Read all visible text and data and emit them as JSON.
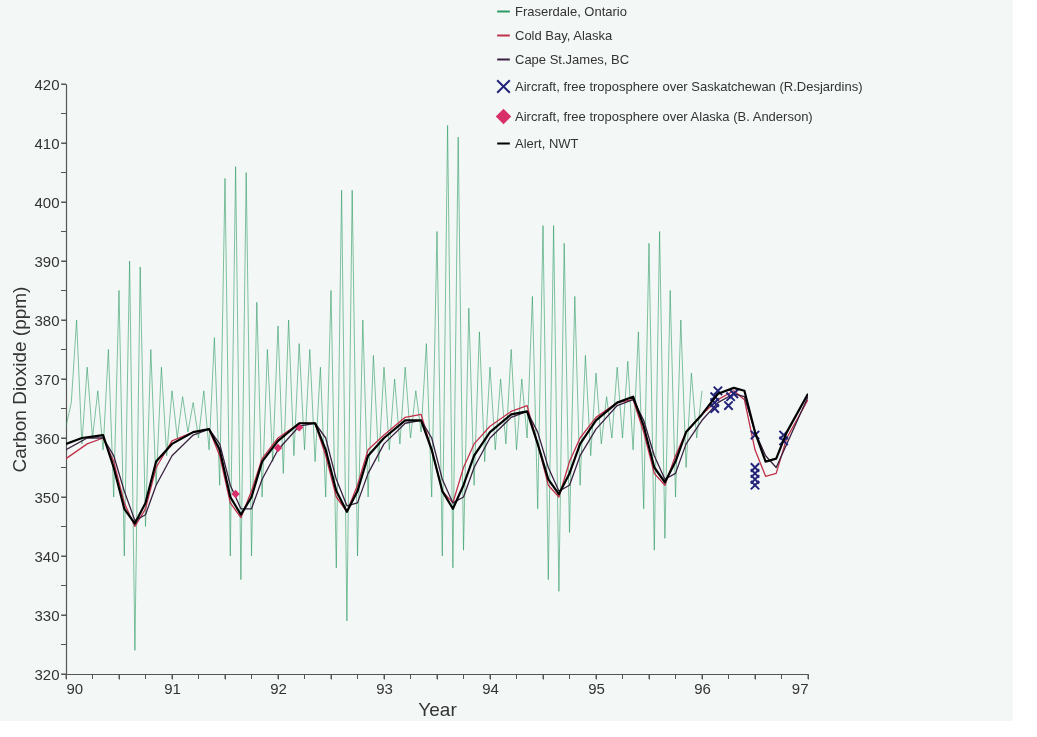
{
  "chart_data": {
    "type": "line",
    "xlabel": "Year",
    "ylabel": "Carbon Dioxide (ppm)",
    "xlim": [
      90,
      97
    ],
    "ylim": [
      320,
      420
    ],
    "xticks": [
      90,
      {
        "value": 90.25,
        "label": null
      },
      {
        "value": 90.5,
        "label": null
      },
      {
        "value": 90.75,
        "label": null
      },
      91,
      {
        "value": 91.25,
        "label": null
      },
      {
        "value": 91.5,
        "label": null
      },
      {
        "value": 91.75,
        "label": null
      },
      92,
      {
        "value": 92.25,
        "label": null
      },
      {
        "value": 92.5,
        "label": null
      },
      {
        "value": 92.75,
        "label": null
      },
      93,
      {
        "value": 93.25,
        "label": null
      },
      {
        "value": 93.5,
        "label": null
      },
      {
        "value": 93.75,
        "label": null
      },
      94,
      {
        "value": 94.25,
        "label": null
      },
      {
        "value": 94.5,
        "label": null
      },
      {
        "value": 94.75,
        "label": null
      },
      95,
      {
        "value": 95.25,
        "label": null
      },
      {
        "value": 95.5,
        "label": null
      },
      {
        "value": 95.75,
        "label": null
      },
      96,
      {
        "value": 96.25,
        "label": null
      },
      {
        "value": 96.5,
        "label": null
      },
      {
        "value": 96.75,
        "label": null
      },
      97
    ],
    "yticks": [
      320,
      {
        "value": 325,
        "label": null
      },
      330,
      {
        "value": 335,
        "label": null
      },
      340,
      {
        "value": 345,
        "label": null
      },
      350,
      {
        "value": 355,
        "label": null
      },
      360,
      {
        "value": 365,
        "label": null
      },
      370,
      {
        "value": 375,
        "label": null
      },
      380,
      {
        "value": 385,
        "label": null
      },
      390,
      {
        "value": 395,
        "label": null
      },
      400,
      {
        "value": 405,
        "label": null
      },
      410,
      {
        "value": 415,
        "label": null
      },
      420
    ],
    "grid": false,
    "legend": "top right",
    "series": [
      {
        "name": "Fraserdale, Ontario",
        "type": "line",
        "color": "#2e9a63",
        "x": [
          90.0,
          90.05,
          90.1,
          90.15,
          90.2,
          90.25,
          90.3,
          90.35,
          90.4,
          90.45,
          90.5,
          90.55,
          90.6,
          90.65,
          90.7,
          90.75,
          90.8,
          90.85,
          90.9,
          90.95,
          91.0,
          91.05,
          91.1,
          91.15,
          91.2,
          91.25,
          91.3,
          91.35,
          91.4,
          91.45,
          91.5,
          91.55,
          91.6,
          91.65,
          91.7,
          91.75,
          91.8,
          91.85,
          91.9,
          91.95,
          92.0,
          92.05,
          92.1,
          92.15,
          92.2,
          92.25,
          92.3,
          92.35,
          92.4,
          92.45,
          92.5,
          92.55,
          92.6,
          92.65,
          92.7,
          92.75,
          92.8,
          92.85,
          92.9,
          92.95,
          93.0,
          93.05,
          93.1,
          93.15,
          93.2,
          93.25,
          93.3,
          93.35,
          93.4,
          93.45,
          93.5,
          93.55,
          93.6,
          93.65,
          93.7,
          93.75,
          93.8,
          93.85,
          93.9,
          93.95,
          94.0,
          94.05,
          94.1,
          94.15,
          94.2,
          94.25,
          94.3,
          94.35,
          94.4,
          94.45,
          94.5,
          94.55,
          94.6,
          94.65,
          94.7,
          94.75,
          94.8,
          94.85,
          94.9,
          94.95,
          95.0,
          95.05,
          95.1,
          95.15,
          95.2,
          95.25,
          95.3,
          95.35,
          95.4,
          95.45,
          95.5,
          95.55,
          95.6,
          95.65,
          95.7,
          95.75,
          95.8,
          95.85,
          95.9,
          95.95,
          96.0
        ],
        "values": [
          362,
          366,
          380,
          359,
          372,
          360,
          368,
          358,
          375,
          350,
          385,
          340,
          390,
          324,
          389,
          345,
          375,
          352,
          372,
          357,
          368,
          360,
          367,
          361,
          366,
          360,
          368,
          358,
          377,
          352,
          404,
          340,
          406,
          336,
          405,
          340,
          383,
          350,
          375,
          356,
          379,
          354,
          380,
          357,
          376,
          358,
          375,
          356,
          372,
          350,
          385,
          338,
          402,
          329,
          402,
          340,
          380,
          350,
          374,
          356,
          372,
          358,
          370,
          359,
          372,
          360,
          368,
          361,
          376,
          350,
          395,
          340,
          413,
          338,
          411,
          341,
          382,
          352,
          378,
          356,
          372,
          358,
          370,
          359,
          375,
          358,
          370,
          360,
          384,
          348,
          396,
          336,
          396,
          334,
          393,
          344,
          384,
          352,
          374,
          357,
          371,
          359,
          367,
          360,
          372,
          360,
          373,
          358,
          378,
          348,
          393,
          341,
          395,
          343,
          385,
          350,
          380,
          355,
          371,
          360,
          368
        ]
      },
      {
        "name": "Cold Bay, Alaska",
        "type": "line",
        "color": "#c0304a",
        "x": [
          90.0,
          90.2,
          90.35,
          90.45,
          90.55,
          90.65,
          90.75,
          90.85,
          91.0,
          91.2,
          91.35,
          91.45,
          91.55,
          91.65,
          91.75,
          91.85,
          92.0,
          92.2,
          92.35,
          92.45,
          92.55,
          92.65,
          92.75,
          92.85,
          93.0,
          93.2,
          93.35,
          93.45,
          93.55,
          93.65,
          93.75,
          93.85,
          94.0,
          94.2,
          94.35,
          94.45,
          94.55,
          94.65,
          94.75,
          94.85,
          95.0,
          95.2,
          95.35,
          95.45,
          95.55,
          95.65,
          95.75,
          95.85,
          96.0,
          96.15,
          96.3,
          96.4,
          96.5,
          96.6,
          96.7,
          96.8,
          97.0
        ],
        "values": [
          356.5,
          359,
          360,
          356,
          349,
          345,
          348,
          355,
          359.5,
          361,
          361.5,
          357,
          349,
          346.5,
          351,
          356.5,
          360,
          362.5,
          362.5,
          357,
          350,
          347.5,
          352,
          358,
          360.5,
          363.5,
          364,
          358,
          351,
          349,
          355,
          359,
          362,
          364.5,
          365.5,
          359,
          352,
          350,
          356,
          360,
          363.5,
          366,
          366.5,
          361,
          354,
          352,
          357,
          361,
          364,
          366.5,
          368,
          366.5,
          358,
          353.5,
          354,
          360,
          366.5
        ]
      },
      {
        "name": "Cape St.James, BC",
        "type": "line",
        "color": "#3a2040",
        "x": [
          90.0,
          90.2,
          90.35,
          90.45,
          90.55,
          90.65,
          90.75,
          90.85,
          91.0,
          91.2,
          91.35,
          91.45,
          91.55,
          91.65,
          91.75,
          91.85,
          92.0,
          92.2,
          92.35,
          92.45,
          92.55,
          92.65,
          92.75,
          92.85,
          93.0,
          93.2,
          93.35,
          93.45,
          93.55,
          93.65,
          93.75,
          93.85,
          94.0,
          94.2,
          94.35,
          94.45,
          94.55,
          94.65,
          94.75,
          94.85,
          95.0,
          95.2,
          95.35,
          95.45,
          95.55,
          95.65,
          95.75,
          95.85,
          96.0,
          96.15,
          96.3,
          96.4,
          96.5,
          96.6,
          96.7,
          96.8,
          97.0
        ],
        "values": [
          358,
          360,
          360,
          357,
          351,
          346,
          347,
          352,
          357,
          360.5,
          361.5,
          359,
          352,
          348,
          348,
          353,
          358,
          362,
          362.5,
          360,
          353,
          348.5,
          349,
          354,
          359,
          362.5,
          363,
          360,
          353,
          349,
          350,
          355,
          360,
          363.5,
          364.5,
          361,
          355,
          351,
          352,
          357,
          361.5,
          365.5,
          366.5,
          363,
          357,
          353,
          354,
          359,
          363,
          366,
          367.5,
          367,
          361,
          357,
          355,
          359,
          367
        ]
      },
      {
        "name": "Aircraft, free troposphere over Saskatchewan (R.Desjardins)",
        "type": "scatter",
        "marker": "cross",
        "color": "#23237a",
        "x": [
          96.12,
          96.12,
          96.12,
          96.15,
          96.25,
          96.27,
          96.3,
          96.5,
          96.5,
          96.5,
          96.5,
          96.5,
          96.77,
          96.77
        ],
        "values": [
          365,
          366,
          367,
          368,
          365.5,
          367,
          367.5,
          360.5,
          355,
          354,
          353,
          352,
          360.5,
          359.5
        ]
      },
      {
        "name": "Aircraft, free troposphere over Alaska (B. Anderson)",
        "type": "scatter",
        "marker": "diamond",
        "color": "#d8306a",
        "x": [
          91.6,
          92.0,
          92.2
        ],
        "values": [
          350.5,
          358.3,
          361.8
        ]
      },
      {
        "name": "Alert, NWT",
        "type": "line",
        "color": "#000000",
        "x": [
          90.0,
          90.15,
          90.35,
          90.45,
          90.55,
          90.65,
          90.75,
          90.85,
          91.0,
          91.2,
          91.35,
          91.45,
          91.55,
          91.65,
          91.75,
          91.85,
          92.0,
          92.2,
          92.35,
          92.45,
          92.55,
          92.65,
          92.75,
          92.85,
          93.0,
          93.2,
          93.35,
          93.45,
          93.55,
          93.65,
          93.75,
          93.85,
          94.0,
          94.2,
          94.35,
          94.45,
          94.55,
          94.65,
          94.75,
          94.85,
          95.0,
          95.2,
          95.35,
          95.45,
          95.55,
          95.65,
          95.75,
          95.85,
          96.0,
          96.15,
          96.3,
          96.4,
          96.5,
          96.6,
          96.7,
          96.8,
          97.0
        ],
        "values": [
          359,
          360,
          360.5,
          355,
          348,
          345.5,
          349,
          356,
          359,
          361,
          361.5,
          358,
          350,
          347,
          350,
          356,
          359.5,
          362.5,
          362.5,
          358,
          351,
          347.5,
          351,
          357,
          360,
          363,
          363,
          358,
          351,
          348,
          352,
          357,
          361,
          364,
          364.5,
          359,
          353,
          350.5,
          354,
          359,
          363,
          366,
          367,
          362,
          355,
          352.5,
          356,
          361,
          364,
          367.5,
          368.5,
          368,
          361,
          356,
          356.5,
          361,
          367.5
        ]
      }
    ]
  }
}
